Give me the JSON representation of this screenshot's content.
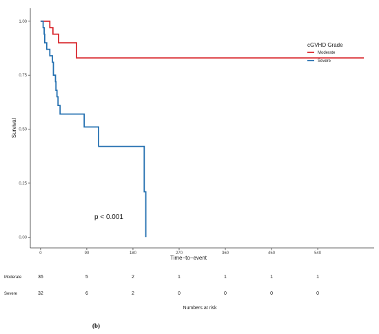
{
  "chart_data": {
    "type": "line",
    "subtype": "kaplan-meier step",
    "xlabel": "Time−to−event",
    "ylabel": "Survival",
    "xlim": [
      -20,
      650
    ],
    "ylim": [
      -0.05,
      1.06
    ],
    "x_ticks": [
      0,
      90,
      180,
      270,
      360,
      450,
      540
    ],
    "x_tick_labels": [
      "0",
      "90",
      "180",
      "270",
      "360",
      "450",
      "540"
    ],
    "y_ticks": [
      0,
      0.25,
      0.5,
      0.75,
      1.0
    ],
    "y_tick_labels": [
      "0.00",
      "0.25",
      "0.50",
      "0.75",
      "1.00"
    ],
    "grid": false,
    "legend": {
      "title": "cGVHD Grade",
      "placement": "right"
    },
    "series": [
      {
        "name": "Moderate",
        "color": "#d9262c",
        "steps": [
          [
            0,
            1.0
          ],
          [
            18,
            0.97
          ],
          [
            24,
            0.94
          ],
          [
            35,
            0.9
          ],
          [
            70,
            0.83
          ],
          [
            630,
            0.83
          ]
        ]
      },
      {
        "name": "Severe",
        "color": "#2470b0",
        "steps": [
          [
            0,
            1.0
          ],
          [
            5,
            0.97
          ],
          [
            7,
            0.94
          ],
          [
            8,
            0.9
          ],
          [
            12,
            0.87
          ],
          [
            18,
            0.84
          ],
          [
            23,
            0.81
          ],
          [
            25,
            0.75
          ],
          [
            29,
            0.72
          ],
          [
            30,
            0.68
          ],
          [
            32,
            0.65
          ],
          [
            34,
            0.61
          ],
          [
            38,
            0.57
          ],
          [
            85,
            0.51
          ],
          [
            113,
            0.42
          ],
          [
            202,
            0.21
          ],
          [
            205,
            0.0
          ]
        ]
      }
    ],
    "annotation": "p < 0.001",
    "risk_table": {
      "title": "Numbers at risk",
      "times": [
        0,
        90,
        180,
        270,
        360,
        450,
        540
      ],
      "rows": [
        {
          "label": "Moderate",
          "values": [
            "36",
            "5",
            "2",
            "1",
            "1",
            "1",
            "1"
          ]
        },
        {
          "label": "Severe",
          "values": [
            "32",
            "6",
            "2",
            "0",
            "0",
            "0",
            "0"
          ]
        }
      ]
    },
    "panel_label": "(b)"
  }
}
